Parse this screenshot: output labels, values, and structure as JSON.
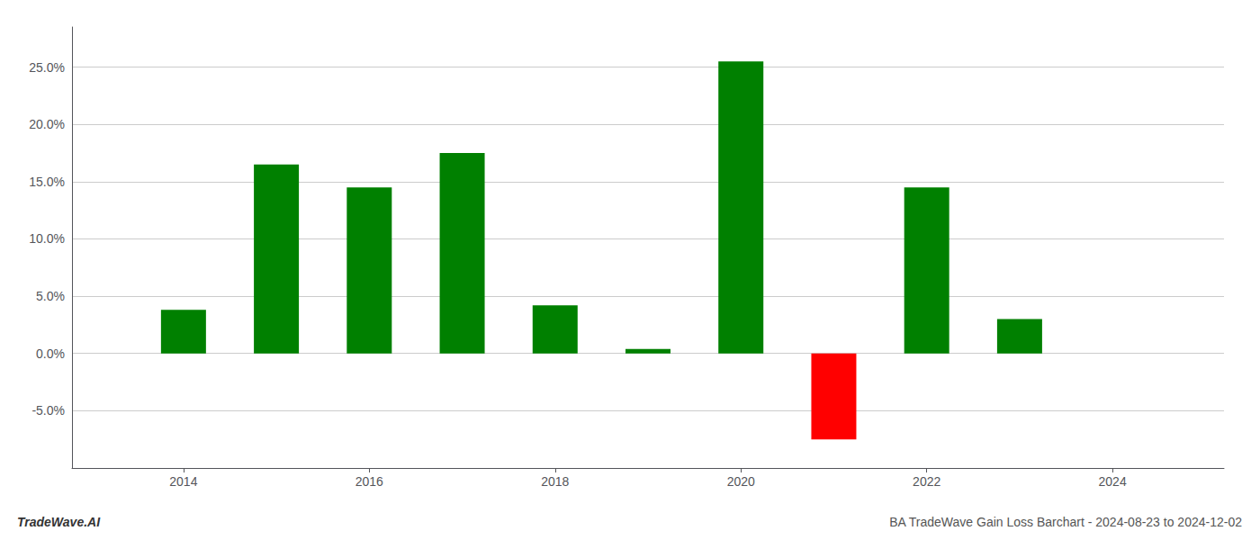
{
  "chart_data": {
    "type": "bar",
    "title": "BA TradeWave Gain Loss Barchart - 2024-08-23 to 2024-12-02",
    "annotations": [
      "TradeWave.AI"
    ],
    "x": [
      2014,
      2015,
      2016,
      2017,
      2018,
      2019,
      2020,
      2021,
      2022,
      2023
    ],
    "values": [
      0.038,
      0.165,
      0.145,
      0.175,
      0.042,
      0.004,
      0.255,
      -0.075,
      0.145,
      0.03
    ],
    "colors": [
      "#008000",
      "#008000",
      "#008000",
      "#008000",
      "#008000",
      "#008000",
      "#008000",
      "#ff0000",
      "#008000",
      "#008000"
    ],
    "xlim": [
      2012.8,
      2025.2
    ],
    "xticks": [
      2014,
      2016,
      2018,
      2020,
      2022,
      2024
    ],
    "ylim": [
      -0.1,
      0.285
    ],
    "yticks": [
      {
        "value": -0.05,
        "label": "-5.0%"
      },
      {
        "value": 0.0,
        "label": "0.0%"
      },
      {
        "value": 0.05,
        "label": "5.0%"
      },
      {
        "value": 0.1,
        "label": "10.0%"
      },
      {
        "value": 0.15,
        "label": "15.0%"
      },
      {
        "value": 0.2,
        "label": "20.0%"
      },
      {
        "value": 0.25,
        "label": "25.0%"
      }
    ],
    "grid": true
  }
}
